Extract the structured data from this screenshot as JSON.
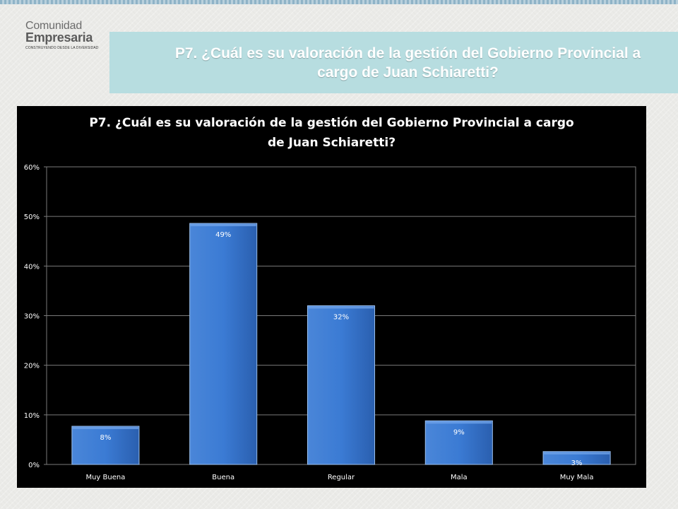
{
  "logo": {
    "line1": "Comunidad",
    "line2": "Empresaria",
    "tagline": "CONSTRUYENDO DESDE LA DIVERSIDAD"
  },
  "header": {
    "title": "P7. ¿Cuál es su valoración de la gestión del Gobierno Provincial a cargo de Juan Schiaretti?"
  },
  "colors": {
    "banner": "#b7dde0",
    "bar": "#2f6fc8",
    "chart_background": "#000000"
  },
  "chart_data": {
    "type": "bar",
    "title_line1": "P7. ¿Cuál es su valoración de la gestión del Gobierno Provincial a cargo",
    "title_line2": "de Juan Schiaretti?",
    "categories": [
      "Muy Buena",
      "Buena",
      "Regular",
      "Mala",
      "Muy Mala"
    ],
    "values": [
      7.7,
      48.6,
      32.0,
      8.8,
      2.6
    ],
    "data_labels": [
      "8%",
      "49%",
      "32%",
      "9%",
      "3%"
    ],
    "ylim": [
      0,
      60
    ],
    "yticks": [
      0,
      10,
      20,
      30,
      40,
      50,
      60
    ],
    "ytick_labels": [
      "0%",
      "10%",
      "20%",
      "30%",
      "40%",
      "50%",
      "60%"
    ],
    "grid": true,
    "xlabel": "",
    "ylabel": ""
  }
}
